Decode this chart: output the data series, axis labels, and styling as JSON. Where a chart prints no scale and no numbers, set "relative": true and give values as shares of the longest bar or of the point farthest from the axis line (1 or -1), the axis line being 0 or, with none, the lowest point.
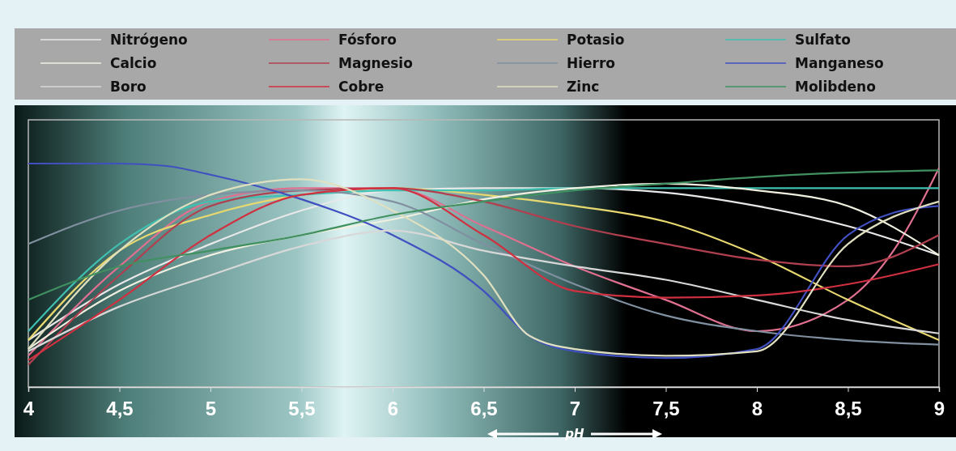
{
  "chart_data": {
    "type": "line",
    "relative": true,
    "xlabel": "pH",
    "xlim": [
      4,
      9
    ],
    "xticks": [
      4,
      {
        "value": 4.5,
        "label": "4,5"
      },
      5,
      {
        "value": 5.5,
        "label": "5,5"
      },
      6,
      {
        "value": 6.5,
        "label": "6,5"
      },
      7,
      {
        "value": 7.5,
        "label": "7,5"
      },
      8,
      {
        "value": 8.5,
        "label": "8,5"
      },
      9
    ],
    "legend": "top",
    "grid": false,
    "line_style": "solid",
    "series": [
      {
        "name": "Nitrógeno",
        "color": "#e8e8e8",
        "x": [
          4,
          4.5,
          5,
          5.5,
          6,
          6.5,
          7,
          7.5,
          8,
          8.5,
          9
        ],
        "values": [
          0.21,
          0.46,
          0.64,
          0.79,
          0.88,
          0.89,
          0.89,
          0.87,
          0.81,
          0.72,
          0.59
        ]
      },
      {
        "name": "Fósforo",
        "color": "#e07090",
        "x": [
          4,
          4.5,
          5,
          5.5,
          6,
          6.5,
          7,
          7.5,
          8,
          8.5,
          8.75,
          9
        ],
        "values": [
          0.14,
          0.54,
          0.83,
          0.89,
          0.89,
          0.72,
          0.54,
          0.39,
          0.25,
          0.39,
          0.61,
          0.98
        ]
      },
      {
        "name": "Potasio",
        "color": "#e8d870",
        "x": [
          4,
          4.5,
          5,
          5.5,
          6,
          6.5,
          7,
          7.5,
          8,
          8.5,
          9
        ],
        "values": [
          0.21,
          0.61,
          0.77,
          0.86,
          0.89,
          0.86,
          0.81,
          0.74,
          0.59,
          0.39,
          0.21
        ]
      },
      {
        "name": "Sulfato",
        "color": "#40c0b0",
        "x": [
          4,
          4.5,
          5,
          5.5,
          6,
          6.5,
          7,
          7.5,
          8,
          8.5,
          9
        ],
        "values": [
          0.25,
          0.64,
          0.83,
          0.86,
          0.88,
          0.88,
          0.89,
          0.89,
          0.89,
          0.89,
          0.89
        ]
      },
      {
        "name": "Calcio",
        "color": "#f0f0e0",
        "x": [
          4,
          4.5,
          5,
          5.5,
          6,
          6.5,
          7,
          7.5,
          8,
          8.5,
          9
        ],
        "values": [
          0.17,
          0.43,
          0.59,
          0.68,
          0.75,
          0.84,
          0.89,
          0.91,
          0.88,
          0.81,
          0.59
        ]
      },
      {
        "name": "Magnesio",
        "color": "#b04050",
        "x": [
          4,
          4.5,
          5,
          5.5,
          6,
          6.5,
          7,
          7.5,
          8,
          8.5,
          9
        ],
        "values": [
          0.1,
          0.5,
          0.81,
          0.88,
          0.89,
          0.83,
          0.72,
          0.64,
          0.57,
          0.54,
          0.68
        ]
      },
      {
        "name": "Hierro",
        "color": "#8090a0",
        "x": [
          4,
          4.5,
          5,
          5.5,
          6,
          6.5,
          7,
          7.5,
          8,
          8.5,
          9
        ],
        "values": [
          0.64,
          0.79,
          0.86,
          0.88,
          0.83,
          0.64,
          0.46,
          0.32,
          0.25,
          0.21,
          0.19
        ]
      },
      {
        "name": "Manganeso",
        "color": "#4050c0",
        "x": [
          4,
          4.5,
          4.75,
          5,
          5.5,
          6,
          6.5,
          6.75,
          7,
          7.5,
          8,
          8.5,
          8.75,
          9
        ],
        "values": [
          1,
          1,
          0.99,
          0.95,
          0.84,
          0.68,
          0.43,
          0.23,
          0.16,
          0.13,
          0.17,
          0.68,
          0.78,
          0.81
        ]
      },
      {
        "name": "Boro",
        "color": "#d8d8d8",
        "x": [
          4,
          4.5,
          5,
          5.5,
          6,
          6.5,
          7,
          7.5,
          8,
          8.5,
          9
        ],
        "values": [
          0.16,
          0.36,
          0.5,
          0.63,
          0.7,
          0.61,
          0.54,
          0.48,
          0.39,
          0.3,
          0.24
        ]
      },
      {
        "name": "Cobre",
        "color": "#d03040",
        "x": [
          4,
          4.5,
          5,
          5.5,
          6,
          6.5,
          7,
          7.5,
          8,
          8.5,
          9
        ],
        "values": [
          0.12,
          0.39,
          0.68,
          0.86,
          0.89,
          0.68,
          0.43,
          0.4,
          0.41,
          0.46,
          0.55
        ]
      },
      {
        "name": "Zinc",
        "color": "#e0e0c0",
        "x": [
          4,
          4.5,
          5,
          5.5,
          6,
          6.5,
          6.75,
          7,
          7.5,
          8,
          8.5,
          9
        ],
        "values": [
          0.17,
          0.61,
          0.86,
          0.93,
          0.79,
          0.5,
          0.23,
          0.17,
          0.14,
          0.16,
          0.64,
          0.83
        ]
      },
      {
        "name": "Molibdeno",
        "color": "#409060",
        "x": [
          4,
          4.5,
          5,
          5.5,
          6,
          6.5,
          7,
          7.5,
          8,
          8.5,
          9
        ],
        "values": [
          0.39,
          0.54,
          0.61,
          0.68,
          0.77,
          0.83,
          0.88,
          0.91,
          0.94,
          0.96,
          0.97
        ]
      }
    ]
  }
}
